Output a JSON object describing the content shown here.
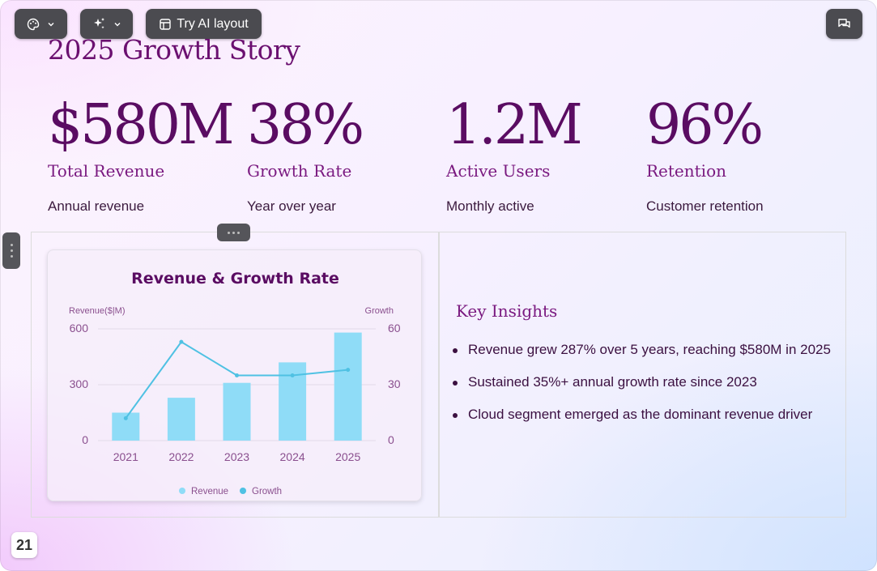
{
  "toolbar": {
    "ai_layout_label": "Try AI layout",
    "icons": [
      "palette-icon",
      "sparkles-icon",
      "layout-icon",
      "comments-icon"
    ]
  },
  "slide": {
    "title": "2025 Growth Story",
    "page_number": "21",
    "stats": [
      {
        "value": "$580M",
        "label": "Total Revenue",
        "desc": "Annual revenue"
      },
      {
        "value": "38%",
        "label": "Growth Rate",
        "desc": "Year over year"
      },
      {
        "value": "1.2M",
        "label": "Active Users",
        "desc": "Monthly active"
      },
      {
        "value": "96%",
        "label": "Retention",
        "desc": "Customer retention"
      }
    ],
    "insights": {
      "title": "Key Insights",
      "items": [
        "Revenue grew 287% over 5 years, reaching $580M in 2025",
        "Sustained 35%+ annual growth rate since 2023",
        "Cloud segment emerged as the dominant revenue driver"
      ]
    }
  },
  "chart_data": {
    "type": "bar",
    "title": "Revenue & Growth Rate",
    "categories": [
      "2021",
      "2022",
      "2023",
      "2024",
      "2025"
    ],
    "series": [
      {
        "name": "Revenue",
        "kind": "bar",
        "axis": "left",
        "color": "#8fdcf7",
        "values": [
          150,
          230,
          310,
          420,
          580
        ]
      },
      {
        "name": "Growth",
        "kind": "line",
        "axis": "right",
        "color": "#4fc1e3",
        "values": [
          12,
          53,
          35,
          35,
          38
        ]
      }
    ],
    "ylabel_left": "Revenue($|M)",
    "ylabel_right": "Growth",
    "ylim_left": [
      0,
      600
    ],
    "ylim_right": [
      0,
      60
    ],
    "yticks_left": [
      "0",
      "300",
      "600"
    ],
    "yticks_right": [
      "0",
      "30",
      "60"
    ],
    "grid": true,
    "legend_position": "bottom"
  },
  "colors": {
    "title": "#6b1070",
    "stat_value": "#5a0c62",
    "toolbar": "#4b4b50"
  }
}
